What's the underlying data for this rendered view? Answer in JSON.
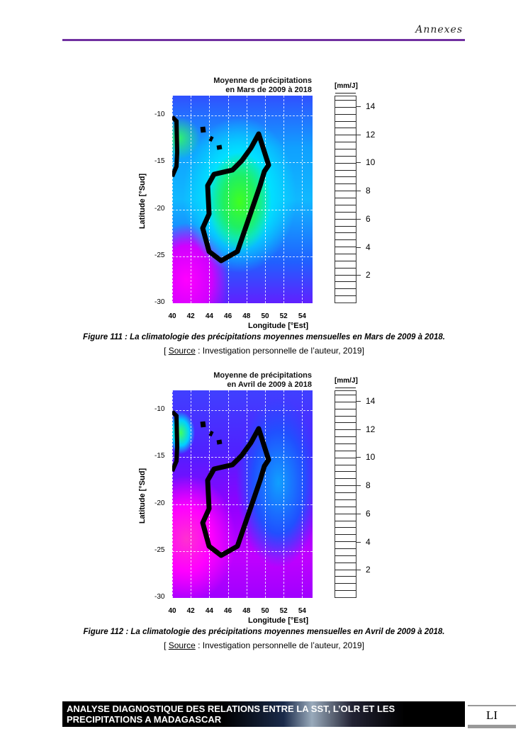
{
  "header": {
    "section": "Annexes"
  },
  "figures": [
    {
      "title_line1": "Moyenne de précipitations",
      "title_line2": "en Mars de 2009 à 2018",
      "unit": "[mm/J]",
      "caption": "Figure 111 : La climatologie des précipitations moyennes mensuelles en Mars de 2009 à 2018.",
      "source_pre": "[ ",
      "source_word": "Source",
      "source_post": " : Investigation personnelle de l’auteur, 2019]",
      "month": "mars"
    },
    {
      "title_line1": "Moyenne de précipitations",
      "title_line2": "en Avril de 2009 à 2018",
      "unit": "[mm/J]",
      "caption": "Figure 112 : La climatologie des précipitations moyennes mensuelles en Avril de 2009 à 2018.",
      "source_pre": "[ ",
      "source_word": "Source",
      "source_post": " : Investigation personnelle de l’auteur, 2019]",
      "month": "avril"
    }
  ],
  "axes": {
    "xlabel": "Longitude [°Est]",
    "ylabel": "Latitude [°Sud]",
    "xticks": [
      "40",
      "42",
      "44",
      "46",
      "48",
      "50",
      "52",
      "54"
    ],
    "yticks": [
      "-10",
      "-15",
      "-20",
      "-25",
      "-30"
    ],
    "colorbar_ticks": [
      "14",
      "12",
      "10",
      "8",
      "6",
      "4",
      "2"
    ],
    "colorbar_range": [
      0,
      14.75
    ]
  },
  "footer": {
    "line1": "ANALYSE DIAGNOSTIQUE DES RELATIONS ENTRE LA SST, L’OLR ET LES",
    "line2": "PRECIPITATIONS A MADAGASCAR",
    "page": "LI"
  }
}
